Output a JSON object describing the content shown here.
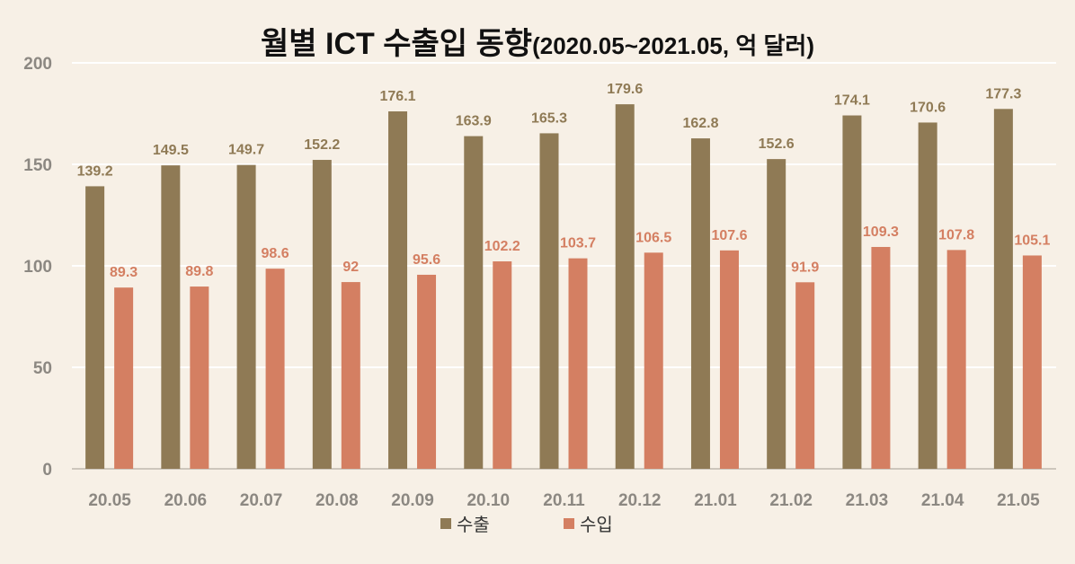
{
  "chart_data": {
    "type": "bar",
    "title": "월별 ICT 수출입 동향",
    "subtitle": "(2020.05~2021.05, 억 달러)",
    "xlabel": "",
    "ylabel": "",
    "ylim": [
      0,
      200
    ],
    "yticks": [
      "0",
      "50",
      "100",
      "150",
      "200"
    ],
    "grid": true,
    "legend_position": "bottom",
    "categories": [
      "20.05",
      "20.06",
      "20.07",
      "20.08",
      "20.09",
      "20.10",
      "20.11",
      "20.12",
      "21.01",
      "21.02",
      "21.03",
      "21.04",
      "21.05"
    ],
    "series": [
      {
        "name": "수출",
        "color": "#8F7A55",
        "values": [
          139.2,
          149.5,
          149.7,
          152.2,
          176.1,
          163.9,
          165.3,
          179.6,
          162.8,
          152.6,
          174.1,
          170.6,
          177.3
        ]
      },
      {
        "name": "수입",
        "color": "#D47F62",
        "values": [
          89.3,
          89.8,
          98.6,
          92,
          95.6,
          102.2,
          103.7,
          106.5,
          107.6,
          91.9,
          109.3,
          107.8,
          105.1
        ]
      }
    ]
  }
}
